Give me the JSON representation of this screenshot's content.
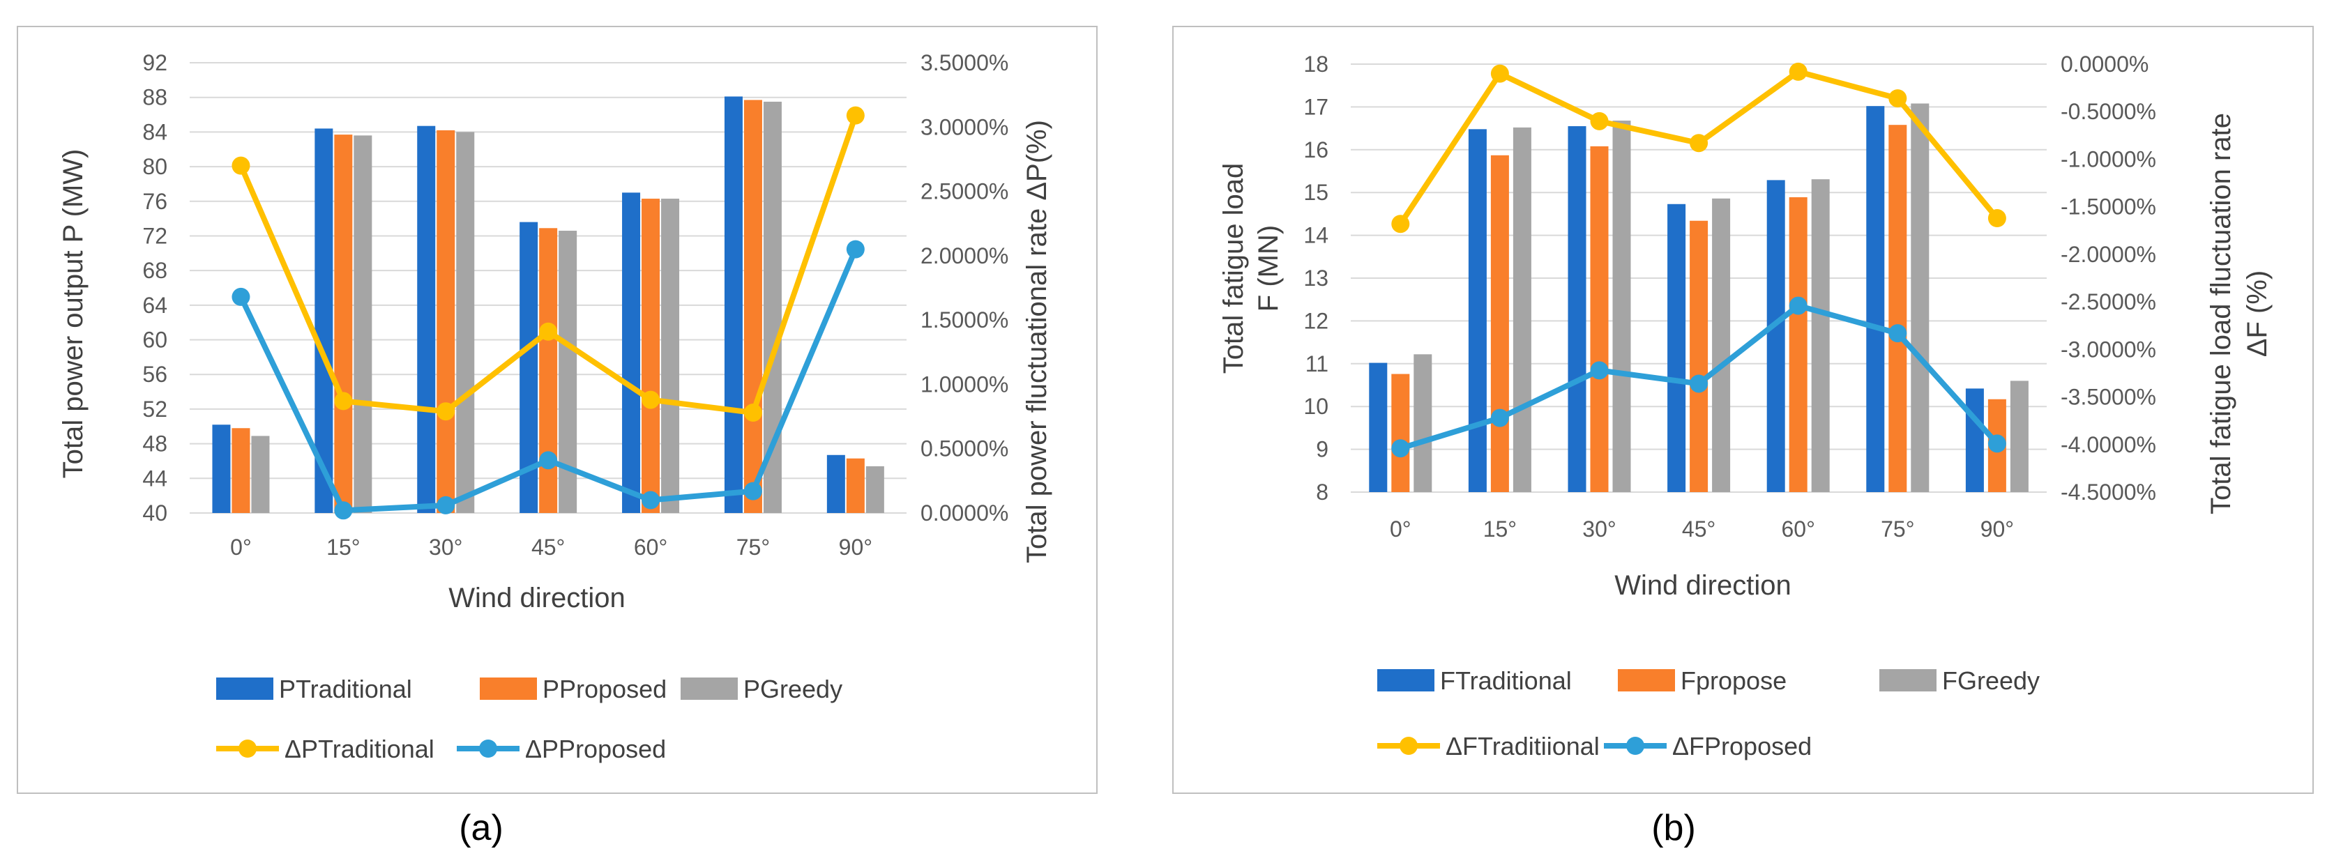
{
  "colors": {
    "traditional": "#1F6FC9",
    "proposed": "#F97F2B",
    "greedy": "#A5A5A5",
    "delta_traditional": "#FFC000",
    "delta_proposed": "#2E9FD8",
    "grid": "#D9D9D9",
    "frame": "#BFBFBF"
  },
  "chart_data": [
    {
      "type": "bar",
      "panel_label": "(a)",
      "categories": [
        "0°",
        "15°",
        "30°",
        "45°",
        "60°",
        "75°",
        "90°"
      ],
      "xlabel": "Wind direction",
      "ylabel": "Total  power output P (MW)",
      "y2label": "Total power fluctuational rate ΔP(%)",
      "ylim": [
        40,
        92
      ],
      "yticks": [
        "40",
        "44",
        "48",
        "52",
        "56",
        "60",
        "64",
        "68",
        "72",
        "76",
        "80",
        "84",
        "88",
        "92"
      ],
      "y2lim": [
        0,
        3.5
      ],
      "y2ticks": [
        "0.0000%",
        "0.5000%",
        "1.0000%",
        "1.5000%",
        "2.0000%",
        "2.5000%",
        "3.0000%",
        "3.5000%"
      ],
      "grid": true,
      "bar_series": [
        {
          "name": "PTraditional",
          "values": [
            50.2,
            84.4,
            84.7,
            73.6,
            77.0,
            88.1,
            46.7
          ]
        },
        {
          "name": "PProposed",
          "values": [
            49.8,
            83.7,
            84.2,
            72.9,
            76.3,
            87.7,
            46.3
          ]
        },
        {
          "name": "PGreedy",
          "values": [
            48.9,
            83.6,
            84.0,
            72.6,
            76.3,
            87.5,
            45.4
          ]
        }
      ],
      "line_series": [
        {
          "name": "ΔPTraditional",
          "axis": "secondary",
          "values": [
            2.7,
            0.87,
            0.79,
            1.41,
            0.88,
            0.78,
            3.09
          ]
        },
        {
          "name": "ΔPProposed",
          "axis": "secondary",
          "values": [
            1.68,
            0.02,
            0.06,
            0.41,
            0.1,
            0.17,
            2.05
          ]
        }
      ],
      "legend_position": "bottom"
    },
    {
      "type": "bar",
      "panel_label": "(b)",
      "categories": [
        "0°",
        "15°",
        "30°",
        "45°",
        "60°",
        "75°",
        "90°"
      ],
      "xlabel": "Wind direction",
      "ylabel_lines": [
        "Total fatigue load",
        "F (MN)"
      ],
      "y2label_lines": [
        "Total fatigue load fluctuation rate",
        "ΔF  (%)"
      ],
      "ylim": [
        8,
        18
      ],
      "yticks": [
        "8",
        "9",
        "10",
        "11",
        "12",
        "13",
        "14",
        "15",
        "16",
        "17",
        "18"
      ],
      "y2lim": [
        -4.5,
        0
      ],
      "y2ticks": [
        "-4.5000%",
        "-4.0000%",
        "-3.5000%",
        "-3.0000%",
        "-2.5000%",
        "-2.0000%",
        "-1.5000%",
        "-1.0000%",
        "-0.5000%",
        "0.0000%"
      ],
      "grid": true,
      "bar_series": [
        {
          "name": "FTraditional",
          "values": [
            11.02,
            16.48,
            16.55,
            14.73,
            15.29,
            17.02,
            10.42
          ]
        },
        {
          "name": "Fpropose",
          "values": [
            10.76,
            15.87,
            16.08,
            14.34,
            14.89,
            16.58,
            10.17
          ]
        },
        {
          "name": "FGreedy",
          "values": [
            11.22,
            16.52,
            16.68,
            14.86,
            15.31,
            17.08,
            10.6
          ]
        }
      ],
      "line_series": [
        {
          "name": "ΔFTraditiional",
          "axis": "secondary",
          "values": [
            -1.68,
            -0.1,
            -0.6,
            -0.83,
            -0.08,
            -0.36,
            -1.62
          ]
        },
        {
          "name": "ΔFProposed",
          "axis": "secondary",
          "values": [
            -4.04,
            -3.72,
            -3.22,
            -3.36,
            -2.54,
            -2.83,
            -3.99
          ]
        }
      ],
      "legend_position": "bottom"
    }
  ]
}
